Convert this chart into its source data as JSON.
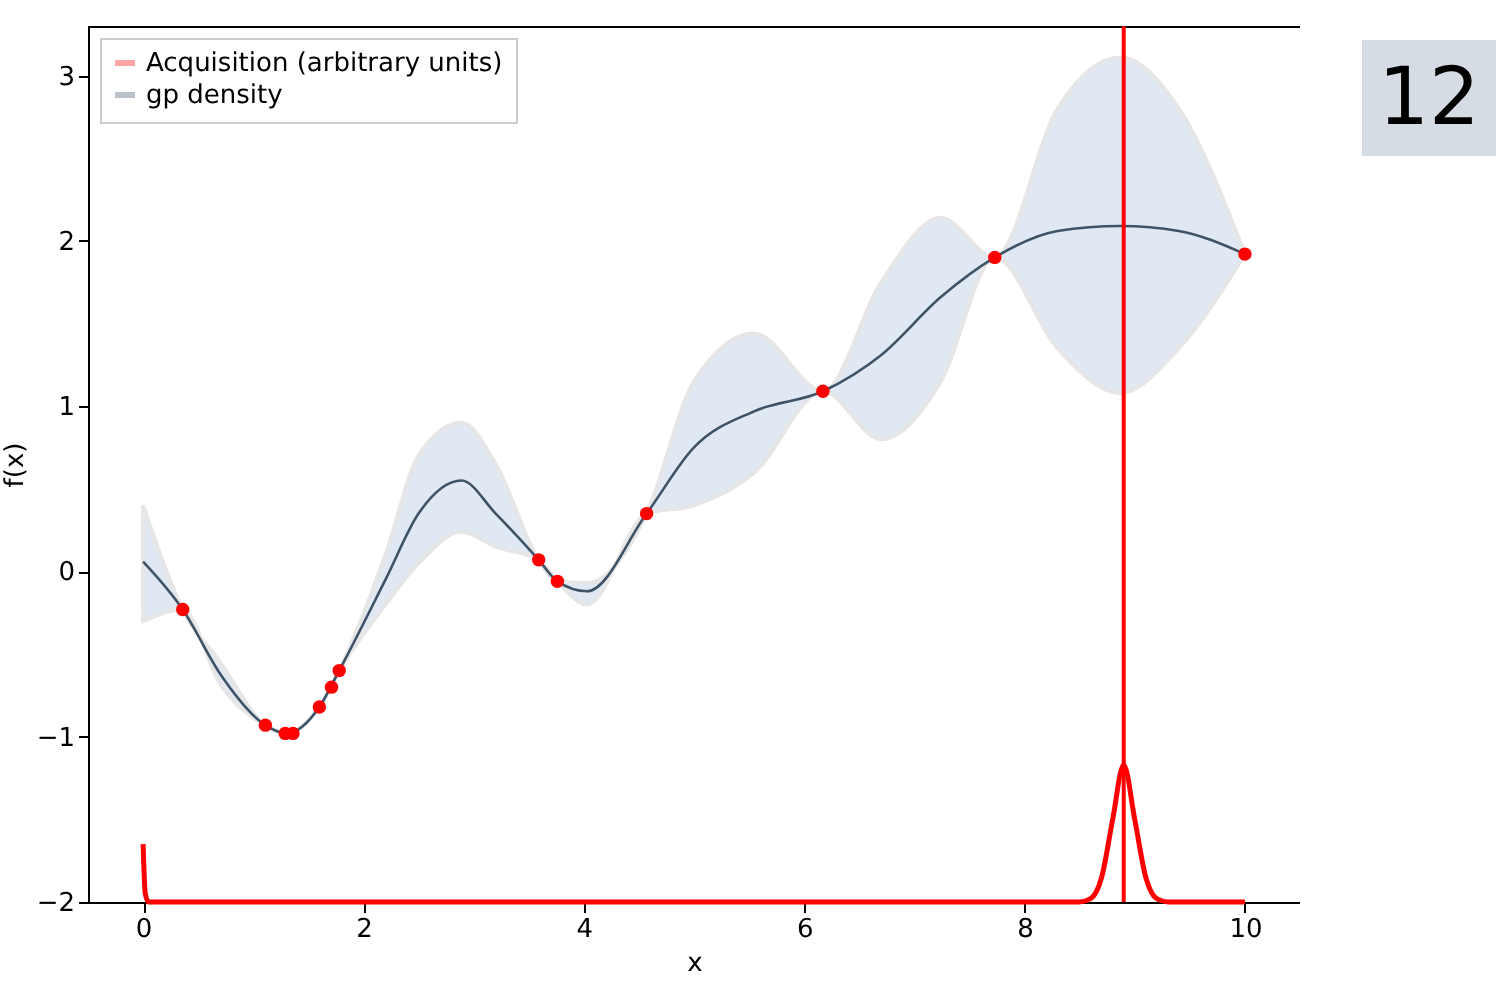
{
  "chart_data": {
    "type": "line",
    "xlabel": "x",
    "ylabel": "f(x)",
    "xlim": [
      -0.5,
      10.5
    ],
    "ylim": [
      -2,
      3.3
    ],
    "xticks": [
      0,
      2,
      4,
      6,
      8,
      10
    ],
    "yticks": [
      -2,
      -1,
      0,
      1,
      2,
      3
    ],
    "grid": false,
    "legend": "top left",
    "annotations": [
      "12"
    ],
    "series": [
      {
        "name": "Acquisition (arbitrary units)",
        "color": "#ff0000",
        "x": [
          0,
          0.02,
          0.05,
          1,
          8.5,
          8.6,
          8.7,
          8.8,
          8.9,
          9.0,
          9.1,
          9.2,
          9.3,
          10
        ],
        "values": [
          -1.65,
          -1.95,
          -2,
          -2,
          -2,
          -1.98,
          -1.85,
          -1.5,
          -1.17,
          -1.5,
          -1.85,
          -1.98,
          -2,
          -2
        ]
      },
      {
        "name": "gp density",
        "color": "#3f5367",
        "x": [
          0,
          0.36,
          0.7,
          1.11,
          1.3,
          1.6,
          1.78,
          2.2,
          2.5,
          2.89,
          3.2,
          3.59,
          3.76,
          4.03,
          4.57,
          5.0,
          5.55,
          6.17,
          6.7,
          7.24,
          7.73,
          8.3,
          8.87,
          9.4,
          10
        ],
        "values": [
          0.06,
          -0.23,
          -0.62,
          -0.93,
          -0.98,
          -0.82,
          -0.6,
          -0.05,
          0.35,
          0.55,
          0.35,
          0.07,
          -0.06,
          -0.12,
          0.35,
          0.75,
          0.97,
          1.09,
          1.31,
          1.66,
          1.9,
          2.06,
          2.09,
          2.06,
          1.92
        ],
        "upper": [
          0.4,
          -0.23,
          -0.55,
          -0.93,
          -0.98,
          -0.82,
          -0.6,
          0.1,
          0.7,
          0.9,
          0.65,
          0.07,
          -0.06,
          -0.07,
          0.35,
          1.15,
          1.44,
          1.09,
          1.75,
          2.14,
          1.9,
          2.8,
          3.11,
          2.8,
          1.92
        ],
        "lower": [
          -0.3,
          -0.23,
          -0.68,
          -0.93,
          -0.98,
          -0.82,
          -0.6,
          -0.2,
          0.05,
          0.24,
          0.15,
          0.07,
          -0.06,
          -0.2,
          0.35,
          0.4,
          0.6,
          1.09,
          0.8,
          1.15,
          1.9,
          1.35,
          1.08,
          1.35,
          1.92
        ]
      },
      {
        "color": "#ff0000",
        "type": "scatter",
        "marker": "circle",
        "x": [
          0.36,
          1.11,
          1.29,
          1.36,
          1.6,
          1.71,
          1.78,
          3.59,
          3.76,
          4.57,
          6.17,
          7.73,
          10.0
        ],
        "values": [
          -0.23,
          -0.93,
          -0.98,
          -0.98,
          -0.82,
          -0.7,
          -0.6,
          0.07,
          -0.06,
          0.35,
          1.09,
          1.9,
          1.92
        ]
      }
    ],
    "ref_lines": [
      {
        "axis": "x",
        "value": 8.9,
        "color": "#ff0000"
      }
    ]
  }
}
